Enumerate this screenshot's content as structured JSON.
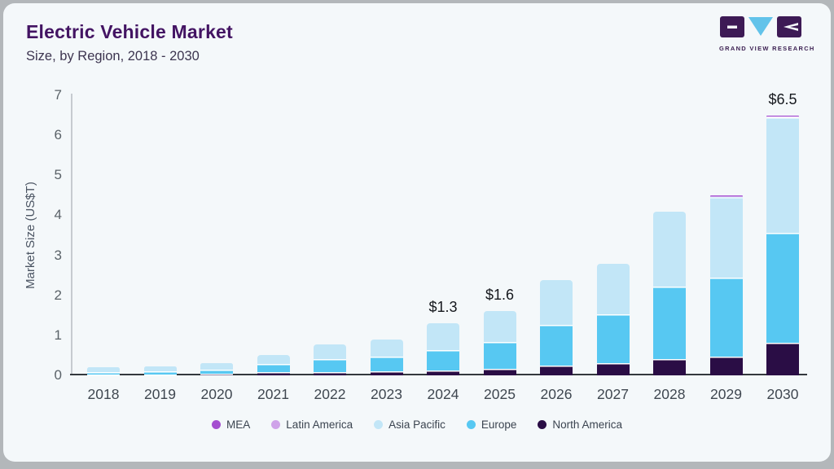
{
  "header": {
    "title": "Electric Vehicle Market",
    "subtitle": "Size, by Region, 2018 - 2030"
  },
  "logo": {
    "text": "GRAND VIEW RESEARCH",
    "block_color": "#3d1a55",
    "triangle_color": "#62c3ea"
  },
  "chart_data": {
    "type": "bar",
    "stacked": true,
    "title": "Electric Vehicle Market",
    "subtitle": "Size, by Region, 2018 - 2030",
    "xlabel": "",
    "ylabel": "Market Size (US$T)",
    "ylim": [
      0,
      7
    ],
    "yticks": [
      0,
      1,
      2,
      3,
      4,
      5,
      6,
      7
    ],
    "grid": false,
    "legend_position": "bottom",
    "categories": [
      "2018",
      "2019",
      "2020",
      "2021",
      "2022",
      "2023",
      "2024",
      "2025",
      "2026",
      "2027",
      "2028",
      "2029",
      "2030"
    ],
    "series": [
      {
        "name": "North America",
        "color": "#2a0d45",
        "values": [
          0.03,
          0.03,
          0.04,
          0.08,
          0.09,
          0.1,
          0.13,
          0.16,
          0.24,
          0.31,
          0.41,
          0.46,
          0.81
        ]
      },
      {
        "name": "Europe",
        "color": "#57c8f2",
        "values": [
          0.05,
          0.07,
          0.11,
          0.2,
          0.31,
          0.37,
          0.51,
          0.68,
          1.02,
          1.22,
          1.81,
          1.98,
          2.76
        ]
      },
      {
        "name": "Asia Pacific",
        "color": "#c2e6f7",
        "values": [
          0.12,
          0.13,
          0.15,
          0.22,
          0.38,
          0.43,
          0.66,
          0.76,
          1.12,
          1.25,
          1.87,
          2.02,
          2.88
        ]
      },
      {
        "name": "Latin America",
        "color": "#cfa3e9",
        "values": [
          0,
          0,
          0,
          0,
          0,
          0,
          0,
          0,
          0,
          0,
          0,
          0.02,
          0.03
        ]
      },
      {
        "name": "MEA",
        "color": "#a44fd0",
        "values": [
          0,
          0,
          0,
          0,
          0,
          0,
          0,
          0,
          0,
          0,
          0,
          0.02,
          0.02
        ]
      }
    ],
    "totals": [
      0.2,
      0.23,
      0.3,
      0.5,
      0.78,
      0.9,
      1.3,
      1.6,
      2.38,
      2.78,
      4.09,
      4.5,
      6.5
    ],
    "annotations": [
      {
        "category": "2024",
        "text": "$1.3"
      },
      {
        "category": "2025",
        "text": "$1.6"
      },
      {
        "category": "2030",
        "text": "$6.5"
      }
    ],
    "legend_order": [
      "MEA",
      "Latin America",
      "Asia Pacific",
      "Europe",
      "North America"
    ]
  }
}
